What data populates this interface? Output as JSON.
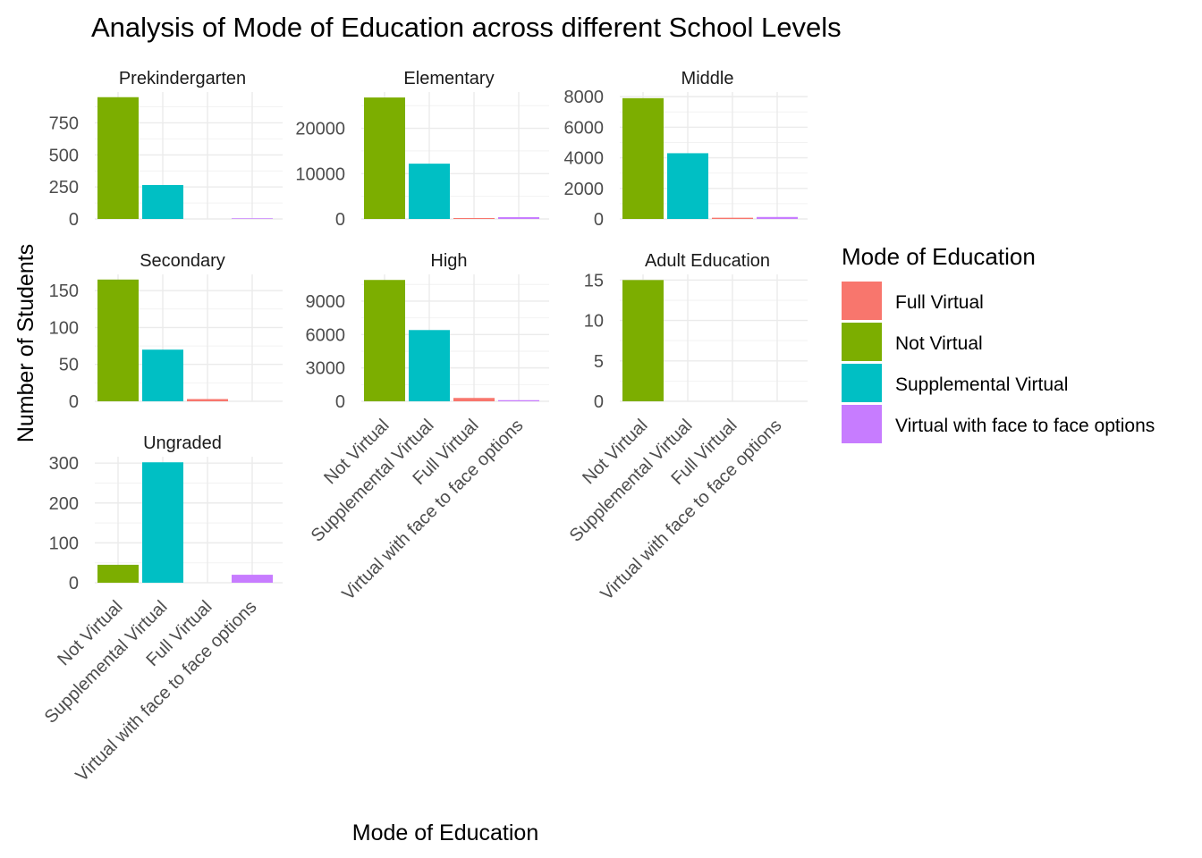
{
  "chart_data": {
    "type": "bar",
    "title": "Analysis of Mode of Education across different School Levels",
    "xlabel": "Mode of Education",
    "ylabel": "Number of Students",
    "categories": [
      "Not Virtual",
      "Supplemental Virtual",
      "Full Virtual",
      "Virtual with face to face options"
    ],
    "legend": {
      "title": "Mode of Education",
      "position": "right",
      "entries": [
        {
          "label": "Full Virtual",
          "color": "#F8766D"
        },
        {
          "label": "Not Virtual",
          "color": "#7CAE00"
        },
        {
          "label": "Supplemental Virtual",
          "color": "#00BFC4"
        },
        {
          "label": "Virtual with face to face options",
          "color": "#C77CFF"
        }
      ]
    },
    "colors": {
      "Not Virtual": "#7CAE00",
      "Supplemental Virtual": "#00BFC4",
      "Full Virtual": "#F8766D",
      "Virtual with face to face options": "#C77CFF"
    },
    "grid": true,
    "facets": [
      {
        "name": "Prekindergarten",
        "values": [
          950,
          265,
          0,
          5
        ],
        "yticks": [
          0,
          250,
          500,
          750
        ],
        "ylim": [
          0,
          990
        ]
      },
      {
        "name": "Elementary",
        "values": [
          26800,
          12200,
          200,
          400
        ],
        "yticks": [
          0,
          10000,
          20000
        ],
        "ylim": [
          0,
          28000
        ]
      },
      {
        "name": "Middle",
        "values": [
          7900,
          4300,
          80,
          130
        ],
        "yticks": [
          0,
          2000,
          4000,
          6000,
          8000
        ],
        "ylim": [
          0,
          8300
        ]
      },
      {
        "name": "Secondary",
        "values": [
          165,
          70,
          3,
          0
        ],
        "yticks": [
          0,
          50,
          100,
          150
        ],
        "ylim": [
          0,
          172
        ]
      },
      {
        "name": "High",
        "values": [
          10900,
          6400,
          300,
          100
        ],
        "yticks": [
          0,
          3000,
          6000,
          9000
        ],
        "ylim": [
          0,
          11400
        ]
      },
      {
        "name": "Adult Education",
        "values": [
          15,
          0,
          0,
          0
        ],
        "yticks": [
          0,
          5,
          10,
          15
        ],
        "ylim": [
          0,
          15.7
        ]
      },
      {
        "name": "Ungraded",
        "values": [
          45,
          302,
          0,
          20
        ],
        "yticks": [
          0,
          100,
          200,
          300
        ],
        "ylim": [
          0,
          316
        ]
      }
    ]
  }
}
